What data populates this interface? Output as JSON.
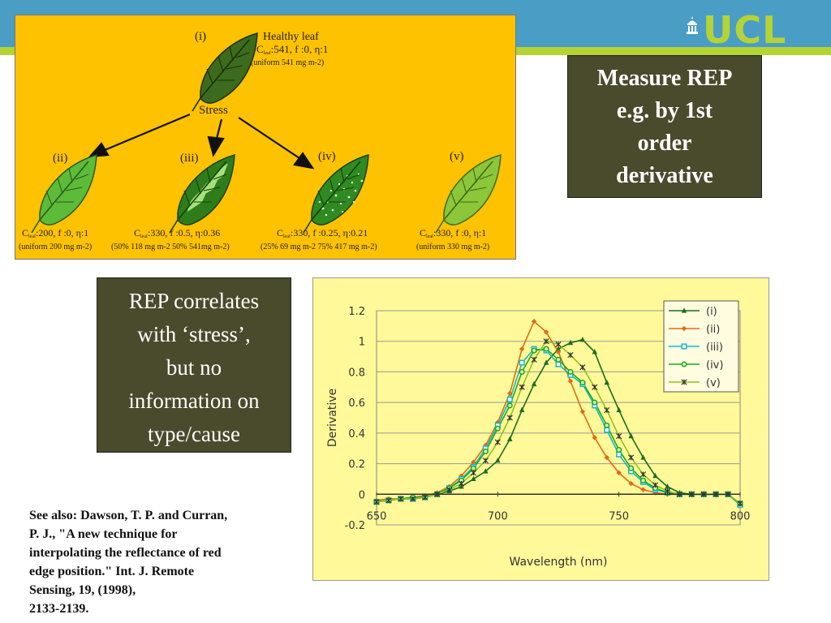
{
  "logo": {
    "text": "UCL"
  },
  "leaf_diagram": {
    "stress_label": "Stress",
    "leaves": [
      {
        "numeral": "(i)",
        "title": "Healthy leaf",
        "params_c": "C",
        "params_sub": "leaf",
        "params_tail": ":541, f :0, η:1",
        "uniform": "(uniform 541 mg m-2)"
      },
      {
        "numeral": "(ii)",
        "params_c": "C",
        "params_sub": "leaf",
        "params_tail": ":200, f :0, η:1",
        "uniform": "(uniform 200 mg m-2)"
      },
      {
        "numeral": "(iii)",
        "params_c": "C",
        "params_sub": "leaf",
        "params_tail": ":330, f :0.5, η:0.36",
        "uniform": "(50% 118 mg m-2   50% 541mg m-2)"
      },
      {
        "numeral": "(iv)",
        "params_c": "C",
        "params_sub": "leaf",
        "params_tail": ":330, f :0.25, η:0.21",
        "uniform": "(25% 69 mg m-2   75% 417 mg m-2)"
      },
      {
        "numeral": "(v)",
        "params_c": "C",
        "params_sub": "leaf",
        "params_tail": ":330, f :0, η:1",
        "uniform": "(uniform 330 mg m-2)"
      }
    ]
  },
  "box_rep": {
    "lines": [
      "Measure REP",
      "e.g. by 1st",
      "order",
      "derivative"
    ]
  },
  "box_corr": {
    "lines": [
      "REP correlates",
      "with ‘stress’,",
      "but no",
      "information on",
      "type/cause"
    ]
  },
  "reference": {
    "lines": [
      "See also: Dawson, T. P. and Curran,",
      "P. J., \"A new technique for",
      "interpolating the reflectance of red",
      "edge position.\" Int. J. Remote",
      "Sensing, 19, (1998),",
      "2133-2139."
    ]
  },
  "chart_data": {
    "type": "line",
    "xlabel": "Wavelength (nm)",
    "ylabel": "Derivative",
    "xlim": [
      650,
      800
    ],
    "ylim": [
      -0.2,
      1.2
    ],
    "xticks": [
      650,
      700,
      750,
      800
    ],
    "yticks": [
      -0.2,
      0,
      0.2,
      0.4,
      0.6,
      0.8,
      1,
      1.2
    ],
    "xtick_labels": [
      "650",
      "700",
      "750",
      "800"
    ],
    "ytick_labels": [
      "-0.2",
      "0",
      "0.2",
      "0.4",
      "0.6",
      "0.8",
      "1",
      "1.2"
    ],
    "grid": "horizontal",
    "legend": "top-right",
    "x": [
      650,
      655,
      660,
      665,
      670,
      675,
      680,
      685,
      690,
      695,
      700,
      705,
      710,
      715,
      720,
      725,
      730,
      735,
      740,
      745,
      750,
      755,
      760,
      765,
      770,
      775,
      780,
      785,
      790,
      795,
      800
    ],
    "series": [
      {
        "name": "(i)",
        "color": "#1e6b1e",
        "marker": "triangle",
        "values": [
          -0.05,
          -0.04,
          -0.03,
          -0.03,
          -0.02,
          0.0,
          0.02,
          0.05,
          0.1,
          0.15,
          0.22,
          0.36,
          0.55,
          0.72,
          0.86,
          0.95,
          0.99,
          1.01,
          0.93,
          0.73,
          0.55,
          0.38,
          0.24,
          0.12,
          0.05,
          0.01,
          0.0,
          0.0,
          0.0,
          0.0,
          -0.07
        ]
      },
      {
        "name": "(ii)",
        "color": "#e06a1a",
        "marker": "diamond",
        "values": [
          -0.04,
          -0.03,
          -0.03,
          -0.02,
          -0.01,
          0.01,
          0.05,
          0.12,
          0.21,
          0.32,
          0.47,
          0.66,
          0.95,
          1.13,
          1.06,
          0.93,
          0.74,
          0.54,
          0.37,
          0.24,
          0.14,
          0.07,
          0.03,
          0.01,
          0.0,
          0.0,
          0.0,
          0.0,
          0.0,
          0.0,
          -0.06
        ]
      },
      {
        "name": "(iii)",
        "color": "#19b5c8",
        "marker": "square",
        "values": [
          -0.05,
          -0.04,
          -0.03,
          -0.03,
          -0.02,
          0.0,
          0.04,
          0.1,
          0.18,
          0.3,
          0.45,
          0.62,
          0.86,
          0.95,
          0.94,
          0.85,
          0.78,
          0.72,
          0.58,
          0.42,
          0.26,
          0.15,
          0.08,
          0.03,
          0.01,
          0.0,
          0.0,
          0.0,
          0.0,
          0.0,
          -0.07
        ]
      },
      {
        "name": "(iv)",
        "color": "#1aa81a",
        "marker": "circle",
        "values": [
          -0.05,
          -0.04,
          -0.03,
          -0.02,
          -0.02,
          0.0,
          0.04,
          0.09,
          0.17,
          0.28,
          0.43,
          0.58,
          0.8,
          0.94,
          0.95,
          0.88,
          0.8,
          0.73,
          0.6,
          0.45,
          0.29,
          0.17,
          0.09,
          0.04,
          0.01,
          0.0,
          0.0,
          0.0,
          0.0,
          0.0,
          -0.06
        ]
      },
      {
        "name": "(v)",
        "color": "#8fc21a",
        "marker": "star",
        "values": [
          -0.05,
          -0.04,
          -0.03,
          -0.03,
          -0.02,
          0.0,
          0.03,
          0.07,
          0.14,
          0.22,
          0.34,
          0.5,
          0.7,
          0.88,
          1.0,
          0.98,
          0.91,
          0.83,
          0.7,
          0.55,
          0.38,
          0.24,
          0.13,
          0.06,
          0.02,
          0.0,
          0.0,
          0.0,
          0.0,
          0.0,
          -0.06
        ]
      }
    ]
  }
}
